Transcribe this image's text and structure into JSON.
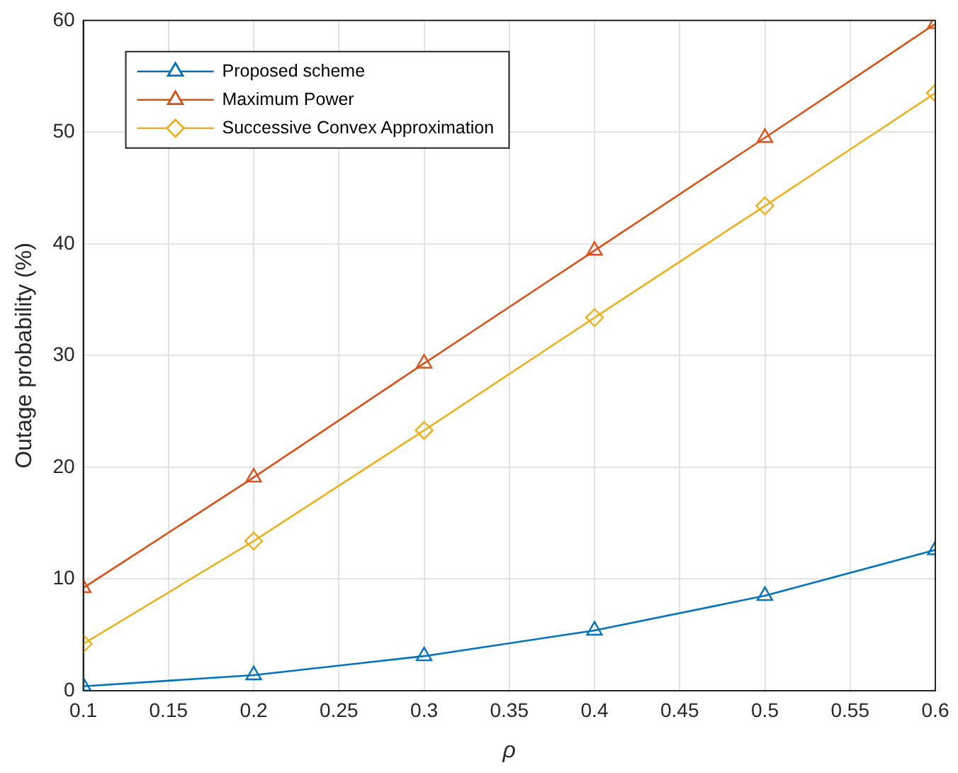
{
  "chart_data": {
    "type": "line",
    "xlabel": "ρ",
    "ylabel": "Outage probability (%)",
    "x": [
      0.1,
      0.2,
      0.3,
      0.4,
      0.5,
      0.6
    ],
    "series": [
      {
        "name": "Proposed scheme",
        "color": "#0072bd",
        "marker": "triangle",
        "values": [
          0.4,
          1.4,
          3.1,
          5.4,
          8.5,
          12.6
        ]
      },
      {
        "name": "Maximum Power",
        "color": "#d95319",
        "marker": "triangle",
        "values": [
          9.2,
          19.1,
          29.3,
          39.4,
          49.5,
          59.7
        ]
      },
      {
        "name": "Successive Convex Approximation",
        "color": "#edb120",
        "marker": "diamond",
        "values": [
          4.2,
          13.4,
          23.3,
          33.4,
          43.4,
          53.5
        ]
      }
    ],
    "xlim": [
      0.1,
      0.6
    ],
    "xticks": [
      0.1,
      0.15,
      0.2,
      0.25,
      0.3,
      0.35,
      0.4,
      0.45,
      0.5,
      0.55,
      0.6
    ],
    "ylim": [
      0,
      60
    ],
    "yticks": [
      0,
      10,
      20,
      30,
      40,
      50,
      60
    ],
    "grid": true,
    "legend": "top left",
    "line_style": "solid"
  }
}
